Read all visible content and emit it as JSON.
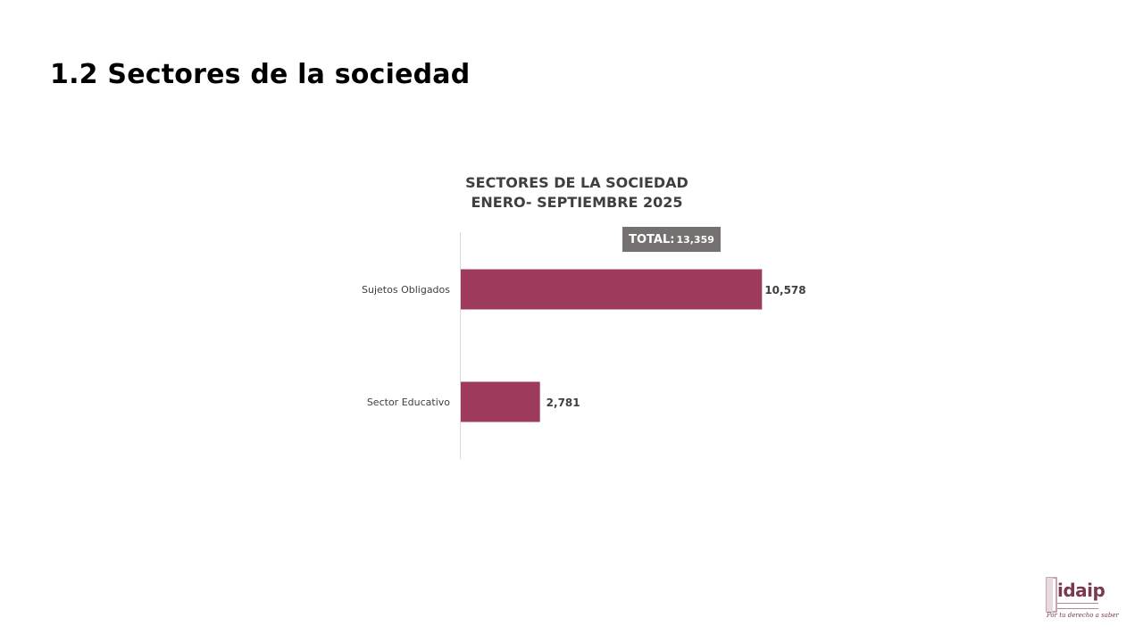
{
  "page": {
    "title": "1.2 Sectores de la sociedad"
  },
  "chart_data": {
    "type": "bar",
    "orientation": "horizontal",
    "title": [
      "SECTORES DE LA SOCIEDAD",
      "ENERO- SEPTIEMBRE 2025"
    ],
    "categories": [
      "Sujetos Obligados",
      "Sector Educativo"
    ],
    "values": [
      10578,
      2781
    ],
    "value_labels": [
      "10,578",
      "2,781"
    ],
    "total_label": "TOTAL:",
    "total_value": "13,359",
    "bar_color": "#9e3a5b",
    "badge_color": "#757171",
    "xlim": [
      0,
      13359
    ],
    "grid": false,
    "legend": "none"
  },
  "logo": {
    "word": "idaip",
    "slogan": "Por tu derecho a saber",
    "color": "#7a3a4e"
  }
}
